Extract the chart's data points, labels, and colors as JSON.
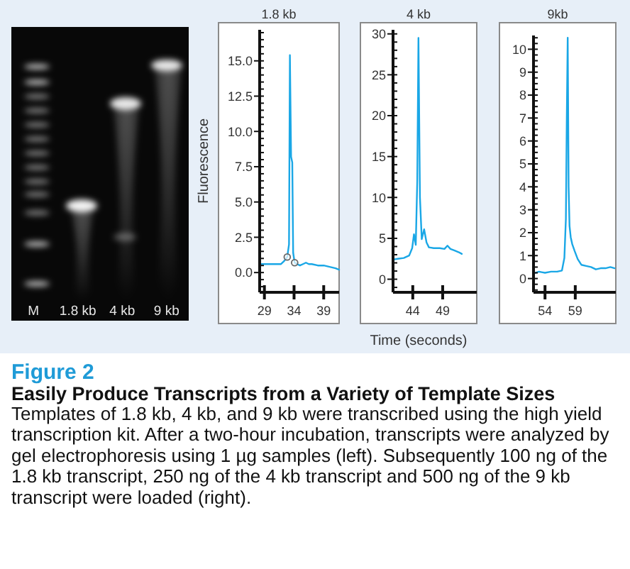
{
  "chart_data": [
    {
      "type": "other",
      "annotations": [
        "M",
        "1.8 kb",
        "4 kb",
        "9 kb"
      ]
    },
    {
      "type": "line",
      "title": "1.8 kb",
      "ylabel": "Fluorescence",
      "x": [
        28.2,
        29,
        30,
        31,
        31.8,
        32.3,
        32.85,
        33.15,
        33.3,
        33.5,
        33.7,
        33.85,
        34.1,
        34.5,
        35,
        35.5,
        36,
        36.5,
        37,
        38,
        39,
        40,
        41,
        41.6
      ],
      "xlim": [
        28.2,
        41.6
      ],
      "xticks": [
        29,
        34,
        39
      ],
      "ylim": [
        -1.4,
        17.2
      ],
      "yticks": [
        {
          "value": -1,
          "label": null
        },
        {
          "value": -0.5,
          "label": null
        },
        {
          "value": 0,
          "label": "0.0"
        },
        {
          "value": 0.5,
          "label": null
        },
        {
          "value": 1,
          "label": null
        },
        {
          "value": 1.5,
          "label": null
        },
        {
          "value": 2,
          "label": null
        },
        2.5,
        {
          "value": 3,
          "label": null
        },
        {
          "value": 3.5,
          "label": null
        },
        {
          "value": 4,
          "label": null
        },
        {
          "value": 4.5,
          "label": null
        },
        {
          "value": 5,
          "label": "5.0"
        },
        {
          "value": 5.5,
          "label": null
        },
        {
          "value": 6,
          "label": null
        },
        {
          "value": 6.5,
          "label": null
        },
        {
          "value": 7,
          "label": null
        },
        7.5,
        {
          "value": 8,
          "label": null
        },
        {
          "value": 8.5,
          "label": null
        },
        {
          "value": 9,
          "label": null
        },
        {
          "value": 9.5,
          "label": null
        },
        {
          "value": 10,
          "label": "10.0"
        },
        {
          "value": 10.5,
          "label": null
        },
        {
          "value": 11,
          "label": null
        },
        {
          "value": 11.5,
          "label": null
        },
        {
          "value": 12,
          "label": null
        },
        12.5,
        {
          "value": 13,
          "label": null
        },
        {
          "value": 13.5,
          "label": null
        },
        {
          "value": 14,
          "label": null
        },
        {
          "value": 14.5,
          "label": null
        },
        {
          "value": 15,
          "label": "15.0"
        },
        {
          "value": 15.5,
          "label": null
        },
        {
          "value": 16,
          "label": null
        },
        {
          "value": 16.5,
          "label": null
        },
        {
          "value": 17,
          "label": null
        }
      ],
      "series": [
        {
          "color": "#1aa7e6",
          "values": [
            0.6,
            0.6,
            0.6,
            0.6,
            0.6,
            0.8,
            1.1,
            2.0,
            15.4,
            8.2,
            7.8,
            1.4,
            0.7,
            0.6,
            0.5,
            0.6,
            0.7,
            0.6,
            0.6,
            0.5,
            0.5,
            0.4,
            0.3,
            0.2
          ]
        },
        {
          "type": "scatter",
          "x": [
            32.85,
            34.1
          ],
          "values": [
            1.1,
            0.7
          ],
          "color": "#666666",
          "marker": "circle"
        }
      ]
    },
    {
      "type": "line",
      "title": "4 kb",
      "xlabel": "Time (seconds)",
      "x": [
        40.7,
        41.5,
        42.5,
        43.4,
        43.9,
        44.2,
        44.5,
        44.75,
        44.95,
        45.2,
        45.5,
        45.9,
        46.3,
        46.7,
        47.5,
        48.5,
        49.3,
        49.8,
        50.3,
        51,
        51.7,
        52.2
      ],
      "xlim": [
        40.7,
        54.7
      ],
      "xticks": [
        44,
        49
      ],
      "ylim": [
        -1.6,
        30.5
      ],
      "yticks": [
        {
          "value": -1,
          "label": null
        },
        0,
        {
          "value": 1,
          "label": null
        },
        {
          "value": 2,
          "label": null
        },
        {
          "value": 3,
          "label": null
        },
        {
          "value": 4,
          "label": null
        },
        5,
        {
          "value": 6,
          "label": null
        },
        {
          "value": 7,
          "label": null
        },
        {
          "value": 8,
          "label": null
        },
        {
          "value": 9,
          "label": null
        },
        10,
        {
          "value": 11,
          "label": null
        },
        {
          "value": 12,
          "label": null
        },
        {
          "value": 13,
          "label": null
        },
        {
          "value": 14,
          "label": null
        },
        15,
        {
          "value": 16,
          "label": null
        },
        {
          "value": 17,
          "label": null
        },
        {
          "value": 18,
          "label": null
        },
        {
          "value": 19,
          "label": null
        },
        20,
        {
          "value": 21,
          "label": null
        },
        {
          "value": 22,
          "label": null
        },
        {
          "value": 23,
          "label": null
        },
        {
          "value": 24,
          "label": null
        },
        25,
        {
          "value": 26,
          "label": null
        },
        {
          "value": 27,
          "label": null
        },
        {
          "value": 28,
          "label": null
        },
        {
          "value": 29,
          "label": null
        },
        30
      ],
      "series": [
        {
          "color": "#1aa7e6",
          "values": [
            2.4,
            2.5,
            2.6,
            2.9,
            3.8,
            5.5,
            4.2,
            12,
            29.5,
            10,
            4.9,
            6.1,
            4.5,
            3.9,
            3.8,
            3.8,
            3.7,
            4.1,
            3.7,
            3.5,
            3.3,
            3.1
          ]
        }
      ]
    },
    {
      "type": "line",
      "title": "9kb",
      "x": [
        52.4,
        53,
        54,
        55,
        56,
        56.8,
        57.2,
        57.45,
        57.6,
        57.75,
        57.9,
        58.05,
        58.25,
        58.5,
        58.9,
        59.4,
        60,
        60.8,
        61.6,
        62.4,
        63.2,
        64,
        64.8,
        65.5
      ],
      "xlim": [
        52.1,
        65.7
      ],
      "xticks": [
        54,
        59
      ],
      "ylim": [
        -0.6,
        10.6
      ],
      "yticks": [
        {
          "value": -0.5,
          "label": null
        },
        {
          "value": -0.25,
          "label": null
        },
        0,
        {
          "value": 0.25,
          "label": null
        },
        {
          "value": 0.5,
          "label": null
        },
        {
          "value": 0.75,
          "label": null
        },
        1,
        {
          "value": 1.25,
          "label": null
        },
        {
          "value": 1.5,
          "label": null
        },
        {
          "value": 1.75,
          "label": null
        },
        2,
        {
          "value": 2.25,
          "label": null
        },
        {
          "value": 2.5,
          "label": null
        },
        {
          "value": 2.75,
          "label": null
        },
        3,
        {
          "value": 3.25,
          "label": null
        },
        {
          "value": 3.5,
          "label": null
        },
        {
          "value": 3.75,
          "label": null
        },
        4,
        {
          "value": 4.25,
          "label": null
        },
        {
          "value": 4.5,
          "label": null
        },
        {
          "value": 4.75,
          "label": null
        },
        5,
        {
          "value": 5.25,
          "label": null
        },
        {
          "value": 5.5,
          "label": null
        },
        {
          "value": 5.75,
          "label": null
        },
        6,
        {
          "value": 6.25,
          "label": null
        },
        {
          "value": 6.5,
          "label": null
        },
        {
          "value": 6.75,
          "label": null
        },
        7,
        {
          "value": 7.25,
          "label": null
        },
        {
          "value": 7.5,
          "label": null
        },
        {
          "value": 7.75,
          "label": null
        },
        8,
        {
          "value": 8.25,
          "label": null
        },
        {
          "value": 8.5,
          "label": null
        },
        {
          "value": 8.75,
          "label": null
        },
        9,
        {
          "value": 9.25,
          "label": null
        },
        {
          "value": 9.5,
          "label": null
        },
        {
          "value": 9.75,
          "label": null
        },
        10,
        {
          "value": 10.25,
          "label": null
        },
        {
          "value": 10.5,
          "label": null
        }
      ],
      "series": [
        {
          "color": "#1aa7e6",
          "values": [
            0.25,
            0.3,
            0.25,
            0.3,
            0.3,
            0.35,
            0.9,
            2.6,
            7,
            10.5,
            4,
            2.3,
            1.8,
            1.5,
            1.2,
            0.85,
            0.6,
            0.55,
            0.5,
            0.4,
            0.45,
            0.45,
            0.5,
            0.45
          ]
        }
      ]
    },
    {
      "type": "other",
      "title": "Figure 2",
      "subtitle": "Easily Produce Transcripts from a Variety of Template Sizes",
      "annotations": [
        "Templates of 1.8 kb, 4 kb, and 9 kb were transcribed using the high yield transcription kit. After a two-hour incubation, transcripts were analyzed by gel electrophoresis using 1 µg samples (left). Subsequently 100 ng of the 1.8 kb transcript, 250 ng of the 4 kb transcript and 500 ng of the 9 kb transcript were loaded (right)."
      ]
    }
  ]
}
